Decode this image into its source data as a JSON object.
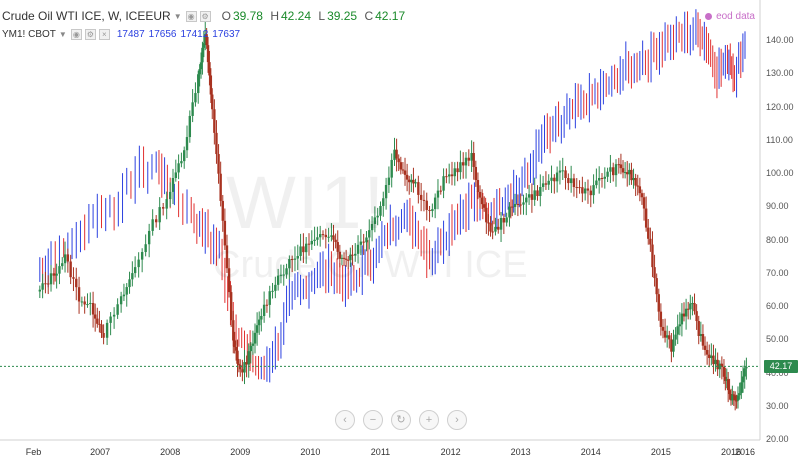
{
  "legend": {
    "symbol": "Crude Oil WTI ICE, W, ICEEUR",
    "ohlc": [
      {
        "key": "O",
        "value": "39.78"
      },
      {
        "key": "H",
        "value": "42.24"
      },
      {
        "key": "L",
        "value": "39.25"
      },
      {
        "key": "C",
        "value": "42.17"
      }
    ],
    "overlay_symbol": "YM1! CBOT",
    "overlay_values": [
      "17487",
      "17656",
      "17412",
      "17637"
    ]
  },
  "eod_badge": "eod data",
  "watermark": {
    "symbol": "WI1!",
    "description": "Crude Oil WTI ICE"
  },
  "last_price_label": "42.17",
  "nav_buttons": [
    {
      "name": "scroll-left",
      "glyph": "‹"
    },
    {
      "name": "zoom-out",
      "glyph": "−"
    },
    {
      "name": "reset",
      "glyph": "↻"
    },
    {
      "name": "zoom-in",
      "glyph": "+"
    },
    {
      "name": "scroll-right",
      "glyph": "›"
    }
  ],
  "colors": {
    "up": "#2d8a4e",
    "down": "#a83220",
    "overlay_up": "#2b40e0",
    "overlay_down": "#e03030",
    "gridline": "#e6e6e6",
    "last_line": "#2d8a4e"
  },
  "chart_data": {
    "type": "line",
    "title": "Crude Oil WTI ICE, W, ICEEUR",
    "x_tick_labels": [
      "Feb",
      "2007",
      "2008",
      "2009",
      "2010",
      "2011",
      "2012",
      "2013",
      "2014",
      "2015",
      "2016",
      "2016"
    ],
    "y_tick_labels": [
      "20.00",
      "30.00",
      "40.00",
      "50.00",
      "60.00",
      "70.00",
      "80.00",
      "90.00",
      "100.00",
      "110.00",
      "120.00",
      "130.00",
      "140.00"
    ],
    "ylim": [
      20,
      147
    ],
    "xlim": [
      2006.0,
      2016.3
    ],
    "grid": false,
    "series": [
      {
        "name": "Crude Oil WTI ICE",
        "style": "candles",
        "x": [
          2006.1,
          2006.3,
          2006.5,
          2006.7,
          2006.9,
          2007.05,
          2007.3,
          2007.5,
          2007.75,
          2008.0,
          2008.2,
          2008.4,
          2008.5,
          2008.6,
          2008.75,
          2008.9,
          2009.0,
          2009.15,
          2009.3,
          2009.5,
          2009.7,
          2009.9,
          2010.1,
          2010.3,
          2010.45,
          2010.6,
          2010.8,
          2011.0,
          2011.2,
          2011.35,
          2011.5,
          2011.7,
          2011.9,
          2012.1,
          2012.3,
          2012.45,
          2012.6,
          2012.8,
          2013.0,
          2013.2,
          2013.4,
          2013.6,
          2013.8,
          2014.0,
          2014.2,
          2014.4,
          2014.55,
          2014.7,
          2014.85,
          2015.0,
          2015.15,
          2015.3,
          2015.45,
          2015.6,
          2015.75,
          2015.9,
          2016.0,
          2016.1,
          2016.22
        ],
        "y": [
          64,
          69,
          75,
          63,
          59,
          52,
          62,
          72,
          85,
          95,
          108,
          130,
          142,
          120,
          85,
          50,
          40,
          47,
          58,
          68,
          73,
          78,
          80,
          83,
          74,
          76,
          82,
          90,
          107,
          100,
          97,
          88,
          98,
          102,
          105,
          90,
          82,
          88,
          92,
          94,
          98,
          100,
          96,
          95,
          100,
          102,
          100,
          95,
          78,
          55,
          48,
          58,
          60,
          48,
          44,
          40,
          33,
          33,
          42
        ]
      },
      {
        "name": "YM1! CBOT",
        "style": "bars",
        "x": [
          2006.1,
          2006.3,
          2006.6,
          2006.9,
          2007.2,
          2007.5,
          2007.8,
          2008.0,
          2008.3,
          2008.5,
          2008.7,
          2008.9,
          2009.1,
          2009.3,
          2009.5,
          2009.7,
          2009.9,
          2010.1,
          2010.3,
          2010.5,
          2010.7,
          2010.9,
          2011.1,
          2011.3,
          2011.5,
          2011.7,
          2011.9,
          2012.1,
          2012.3,
          2012.5,
          2012.7,
          2012.9,
          2013.1,
          2013.3,
          2013.5,
          2013.7,
          2013.9,
          2014.1,
          2014.3,
          2014.5,
          2014.7,
          2014.9,
          2015.1,
          2015.3,
          2015.5,
          2015.65,
          2015.8,
          2015.95,
          2016.05,
          2016.2
        ],
        "y": [
          71,
          74,
          79,
          88,
          90,
          100,
          103,
          95,
          88,
          82,
          76,
          55,
          45,
          40,
          48,
          62,
          66,
          70,
          72,
          65,
          70,
          76,
          82,
          88,
          84,
          75,
          82,
          88,
          92,
          88,
          92,
          95,
          100,
          110,
          114,
          118,
          122,
          124,
          128,
          132,
          134,
          136,
          140,
          142,
          144,
          140,
          130,
          136,
          130,
          140
        ]
      }
    ]
  }
}
